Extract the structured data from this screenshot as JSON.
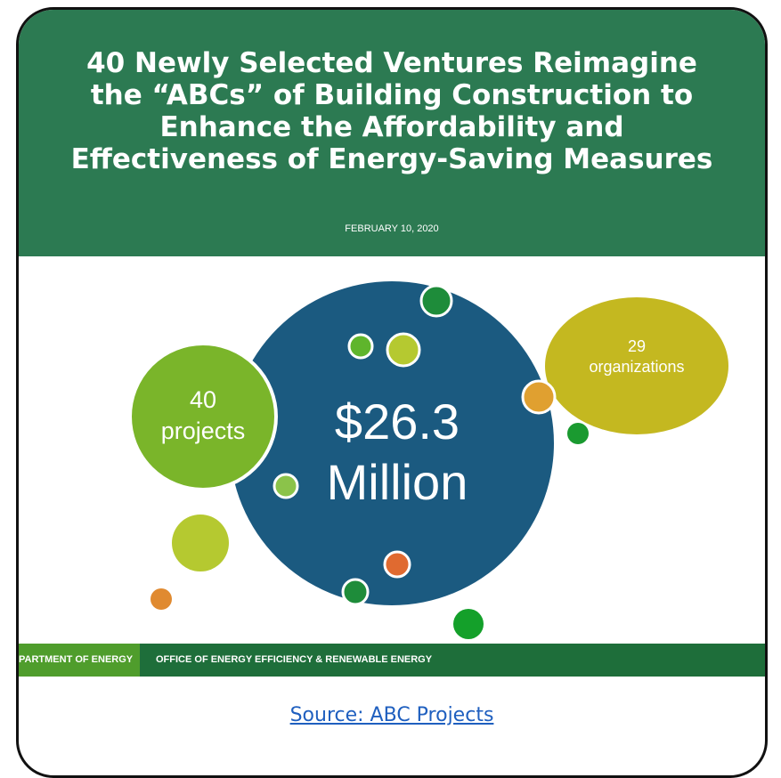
{
  "header": {
    "title_lines": [
      "40 Newly Selected Ventures Reimagine",
      "the “ABCs” of Building Construction to",
      "Enhance the Affordability and",
      "Effectiveness of Energy-Saving Measures"
    ],
    "date": "FEBRUARY 10, 2020"
  },
  "bubbles": {
    "projects_number": "40",
    "projects_label": "projects",
    "amount": "$26.3",
    "amount_unit": "Million",
    "organizations_number": "29",
    "organizations_label": "organizations"
  },
  "footer": {
    "left": "PARTMENT OF ENERGY",
    "right": "OFFICE OF ENERGY EFFICIENCY & RENEWABLE ENERGY"
  },
  "link": "Source: ABC Projects"
}
